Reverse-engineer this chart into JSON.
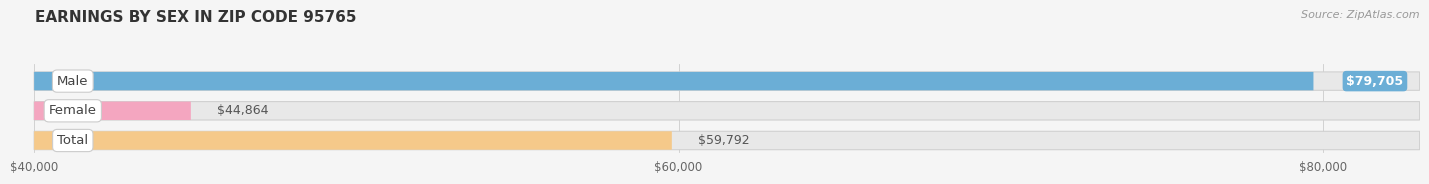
{
  "title": "EARNINGS BY SEX IN ZIP CODE 95765",
  "source": "Source: ZipAtlas.com",
  "categories": [
    "Male",
    "Female",
    "Total"
  ],
  "values": [
    79705,
    44864,
    59792
  ],
  "bar_colors": [
    "#6baed6",
    "#f4a6c0",
    "#f5c98a"
  ],
  "bar_edge_colors": [
    "#a8cde8",
    "#f9cdd9",
    "#fad9a4"
  ],
  "value_labels": [
    "$79,705",
    "$44,864",
    "$59,792"
  ],
  "value_in_bar": [
    true,
    false,
    false
  ],
  "x_min": 40000,
  "x_max": 83000,
  "x_ticks": [
    40000,
    60000,
    80000
  ],
  "x_tick_labels": [
    "$40,000",
    "$60,000",
    "$80,000"
  ],
  "background_color": "#f5f5f5",
  "bar_bg_color": "#e8e8e8",
  "bar_bg_edge_color": "#d0d0d0",
  "title_fontsize": 11,
  "source_fontsize": 8,
  "label_fontsize": 9.5,
  "value_fontsize": 9
}
